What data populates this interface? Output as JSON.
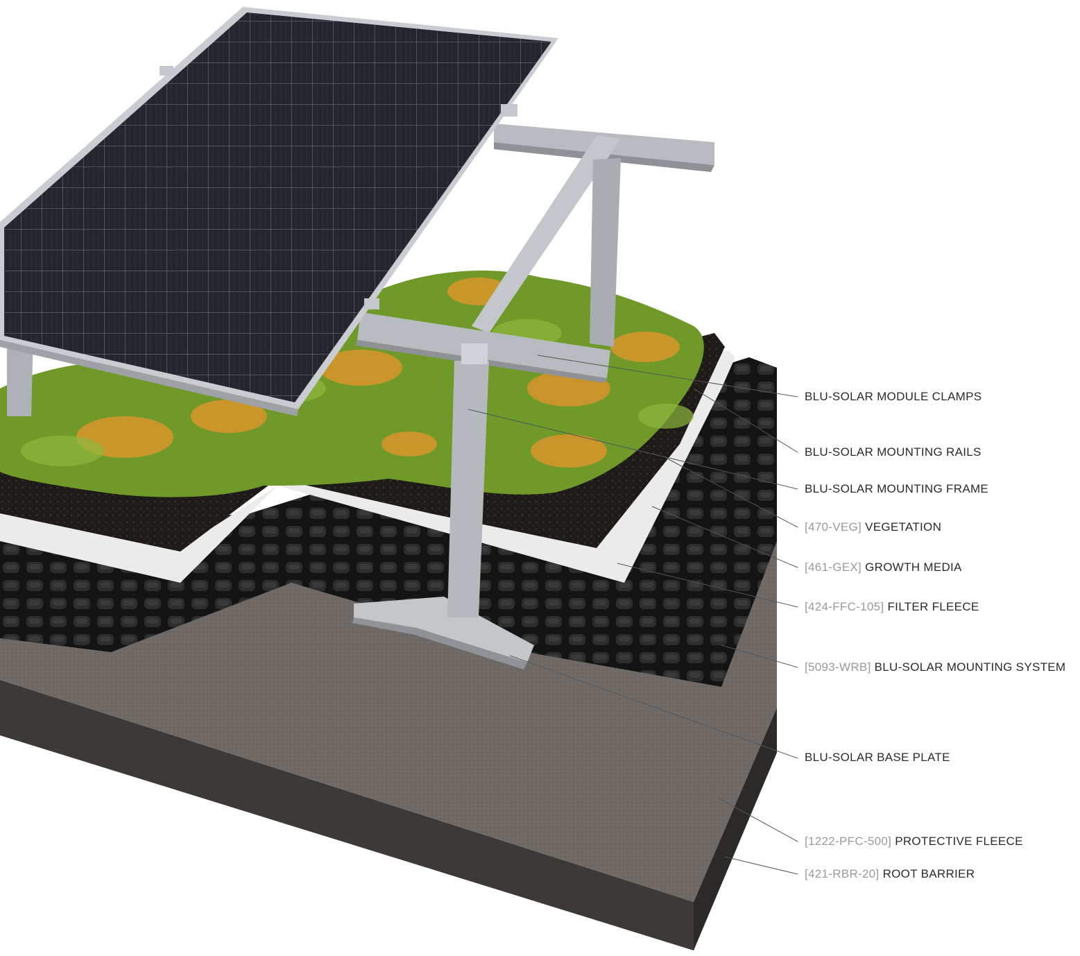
{
  "labels": [
    {
      "code": "",
      "text": "BLU-SOLAR MODULE CLAMPS"
    },
    {
      "code": "",
      "text": "BLU-SOLAR MOUNTING RAILS"
    },
    {
      "code": "",
      "text": "BLU-SOLAR MOUNTING FRAME"
    },
    {
      "code": "[470-VEG]",
      "text": "VEGETATION"
    },
    {
      "code": "[461-GEX]",
      "text": "GROWTH MEDIA"
    },
    {
      "code": "[424-FFC-105]",
      "text": "FILTER FLEECE"
    },
    {
      "code": "[5093-WRB]",
      "text": "BLU-SOLAR MOUNTING SYSTEM"
    },
    {
      "code": "",
      "text": "BLU-SOLAR BASE PLATE"
    },
    {
      "code": "[1222-PFC-500]",
      "text": "PROTECTIVE FLEECE"
    },
    {
      "code": "[421-RBR-20]",
      "text": "ROOT BARRIER"
    }
  ],
  "colors": {
    "label_text": "#2a2a2a",
    "label_code": "#9a9a9a",
    "leader_line": "#555555",
    "solar_panel": "#23272d",
    "aluminium": "#b8bcc1",
    "vegetation": "#6f9a2a",
    "flowers": "#d9952a",
    "growth_media": "#1e1a17",
    "filter_fleece": "#ebebeb",
    "drainage_board": "#1a1a1a",
    "protective_fleece": "#6e6965",
    "root_barrier": "#3a3735"
  }
}
